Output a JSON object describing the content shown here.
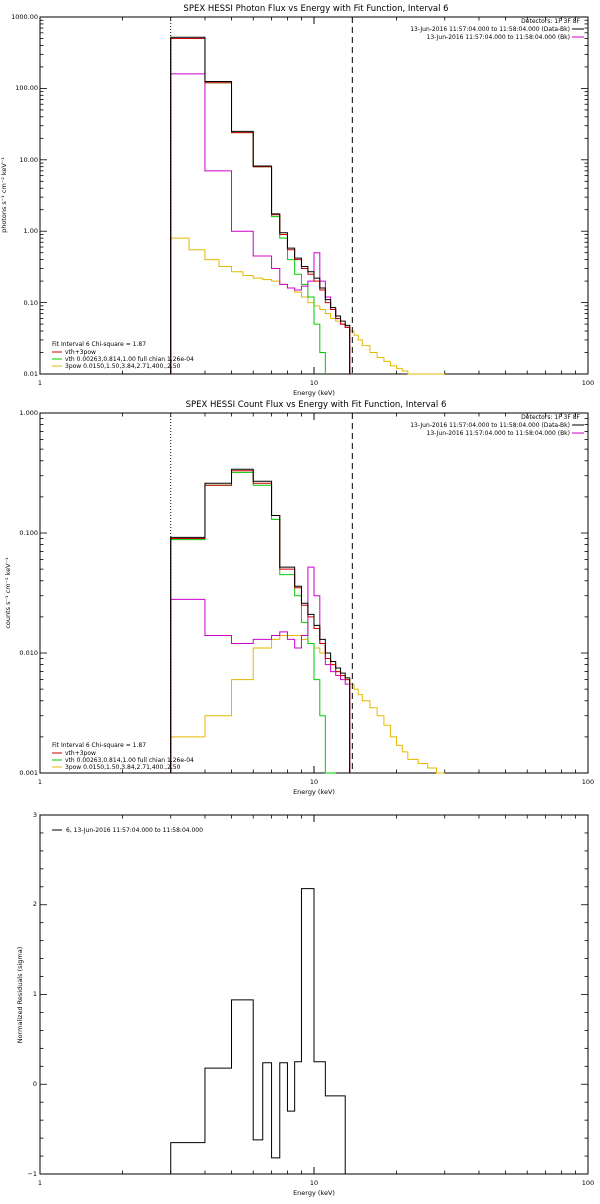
{
  "chart_data": [
    {
      "type": "line",
      "title": "SPEX HESSI Photon Flux vs Energy with Fit Function, Interval 6",
      "xlabel": "Energy (keV)",
      "ylabel": "photons s⁻¹ cm⁻² keV⁻¹",
      "xscale": "log",
      "yscale": "log",
      "xlim": [
        1,
        100
      ],
      "ylim": [
        0.01,
        1000
      ],
      "xticks": [
        "1",
        "10",
        "100"
      ],
      "yticks": [
        "0.01",
        "0.10",
        "1.00",
        "10.00",
        "100.00",
        "1000.00"
      ],
      "detectors_label": "Detectors: 1F 3F 8F",
      "top_legend": [
        {
          "text": "13-Jun-2016 11:57:04.000 to 11:58:04.000 (Data-Bk)",
          "color": "#000000"
        },
        {
          "text": "13-Jun-2016 11:57:04.000 to 11:58:04.000 (Bk)",
          "color": "#cc00cc"
        }
      ],
      "fit_legend": {
        "header": "Fit Interval 6   Chi-square = 1.87",
        "entries": [
          {
            "text": "vth+3pow",
            "color": "#cc0000"
          },
          {
            "text": "vth 0.00263,0.814,1.00  full chian 1.26e-04",
            "color": "#00cc00"
          },
          {
            "text": "3pow 0.0150,1.50,3.84,2.71,400.,2.50",
            "color": "#e6b800"
          }
        ]
      },
      "vlines": [
        {
          "x": 3.0,
          "style": "dotted",
          "color": "#000000"
        },
        {
          "x": 13.8,
          "style": "dashed",
          "color": "#000000"
        }
      ],
      "edges": [
        3.0,
        3.5,
        4.0,
        4.5,
        5.0,
        5.5,
        6.0,
        6.5,
        7.0,
        7.5,
        8.0,
        8.5,
        9.0,
        9.5,
        10.0,
        10.5,
        11.0,
        11.5,
        12.0,
        12.5,
        13.0,
        13.5
      ],
      "series": [
        {
          "key": "yellow",
          "color": "#e6b800",
          "edges": [
            3.0,
            3.5,
            4.0,
            4.5,
            5.0,
            5.5,
            6.0,
            6.5,
            7.0,
            7.5,
            8.0,
            8.5,
            9.0,
            9.5,
            10.0,
            10.5,
            11.0,
            11.5,
            12.0,
            12.5,
            13.0,
            13.5,
            14.0,
            14.5,
            15.0,
            16.0,
            17.0,
            18.0,
            19.0,
            20.0,
            21.0,
            22.0,
            24.0,
            26.0,
            28.0,
            30.0
          ],
          "values": [
            0.8,
            0.55,
            0.4,
            0.32,
            0.27,
            0.24,
            0.22,
            0.21,
            0.2,
            0.18,
            0.16,
            0.14,
            0.12,
            0.1,
            0.09,
            0.08,
            0.07,
            0.06,
            0.055,
            0.05,
            0.045,
            0.04,
            0.035,
            0.03,
            0.025,
            0.02,
            0.017,
            0.015,
            0.013,
            0.012,
            0.011,
            0.01,
            0.01,
            0.01,
            0.01
          ]
        },
        {
          "key": "green",
          "color": "#00cc00",
          "edges": [
            3.0,
            4.0,
            5.0,
            6.0,
            7.0,
            7.5,
            8.0,
            8.5,
            9.0,
            9.5,
            10.0,
            10.5,
            11.0
          ],
          "values": [
            500,
            120,
            24,
            8,
            1.6,
            0.8,
            0.4,
            0.25,
            0.18,
            0.12,
            0.05,
            0.02
          ]
        },
        {
          "key": "magenta",
          "color": "#cc00cc",
          "edges": [
            3.0,
            4.0,
            5.0,
            6.0,
            7.0,
            7.5,
            8.0,
            8.5,
            9.0,
            9.5,
            10.0,
            10.5,
            11.0,
            11.5,
            12.0,
            12.5,
            13.0,
            13.5
          ],
          "values": [
            160,
            7,
            1.0,
            0.45,
            0.3,
            0.18,
            0.16,
            0.15,
            0.17,
            0.2,
            0.5,
            0.2,
            0.12,
            0.08,
            0.06,
            0.05,
            0.045
          ]
        },
        {
          "key": "red",
          "color": "#cc0000",
          "edges": [
            3.0,
            4.0,
            5.0,
            6.0,
            7.0,
            7.5,
            8.0,
            8.5,
            9.0,
            9.5,
            10.0,
            10.5,
            11.0,
            11.5,
            12.0,
            12.5,
            13.0,
            13.5
          ],
          "values": [
            500,
            120,
            24,
            8,
            1.7,
            0.9,
            0.55,
            0.4,
            0.3,
            0.25,
            0.2,
            0.15,
            0.1,
            0.08,
            0.06,
            0.05,
            0.045
          ]
        },
        {
          "key": "black",
          "color": "#000000",
          "edges": [
            3.0,
            4.0,
            5.0,
            6.0,
            7.0,
            7.5,
            8.0,
            8.5,
            9.0,
            9.5,
            10.0,
            10.5,
            11.0,
            11.5,
            12.0,
            12.5,
            13.0,
            13.5
          ],
          "values": [
            520,
            125,
            25,
            8.2,
            1.75,
            0.95,
            0.58,
            0.42,
            0.32,
            0.27,
            0.22,
            0.16,
            0.11,
            0.085,
            0.065,
            0.055,
            0.048
          ]
        }
      ]
    },
    {
      "type": "line",
      "title": "SPEX HESSI Count Flux vs Energy with Fit Function, Interval 6",
      "xlabel": "Energy (keV)",
      "ylabel": "counts s⁻¹ cm⁻² keV⁻¹",
      "xscale": "log",
      "yscale": "log",
      "xlim": [
        1,
        100
      ],
      "ylim": [
        0.001,
        1
      ],
      "xticks": [
        "1",
        "10",
        "100"
      ],
      "yticks": [
        "0.001",
        "0.010",
        "0.100",
        "1.000"
      ],
      "detectors_label": "Detectors: 1F 3F 8F",
      "top_legend": [
        {
          "text": "13-Jun-2016 11:57:04.000 to 11:58:04.000 (Data-Bk)",
          "color": "#000000"
        },
        {
          "text": "13-Jun-2016 11:57:04.000 to 11:58:04.000 (Bk)",
          "color": "#cc00cc"
        }
      ],
      "fit_legend": {
        "header": "Fit Interval 6   Chi-square = 1.87",
        "entries": [
          {
            "text": "vth+3pow",
            "color": "#cc0000"
          },
          {
            "text": "vth 0.00263,0.814,1.00  full chian 1.26e-04",
            "color": "#00cc00"
          },
          {
            "text": "3pow 0.0150,1.50,3.84,2.71,400.,2.50",
            "color": "#e6b800"
          }
        ]
      },
      "vlines": [
        {
          "x": 3.0,
          "style": "dotted",
          "color": "#000000"
        },
        {
          "x": 13.8,
          "style": "dashed",
          "color": "#000000"
        }
      ],
      "series": [
        {
          "key": "yellow",
          "color": "#e6b800",
          "edges": [
            3.0,
            4.0,
            5.0,
            6.0,
            7.0,
            7.5,
            8.0,
            8.5,
            9.0,
            9.5,
            10.0,
            10.5,
            11.0,
            11.5,
            12.0,
            12.5,
            13.0,
            13.5,
            14.0,
            14.5,
            15.0,
            16.0,
            17.0,
            18.0,
            19.0,
            20.0,
            21.0,
            22.0,
            24.0,
            26.0,
            28.0,
            30.0
          ],
          "values": [
            0.002,
            0.003,
            0.006,
            0.011,
            0.013,
            0.014,
            0.014,
            0.014,
            0.013,
            0.012,
            0.011,
            0.01,
            0.009,
            0.008,
            0.007,
            0.0065,
            0.006,
            0.0055,
            0.005,
            0.0045,
            0.004,
            0.0035,
            0.003,
            0.0025,
            0.002,
            0.0017,
            0.0015,
            0.0013,
            0.0012,
            0.0011,
            0.001
          ]
        },
        {
          "key": "green",
          "color": "#00cc00",
          "edges": [
            3.0,
            3.5,
            4.0,
            4.5,
            5.0,
            5.5,
            6.0,
            6.5,
            7.0,
            7.5,
            8.0,
            8.5,
            9.0,
            9.5,
            10.0,
            10.5,
            11.0,
            11.5,
            12.0
          ],
          "values": [
            0.088,
            0.088,
            0.25,
            0.25,
            0.32,
            0.32,
            0.25,
            0.25,
            0.13,
            0.045,
            0.045,
            0.03,
            0.018,
            0.012,
            0.006,
            0.003,
            0.001,
            0.001
          ]
        },
        {
          "key": "magenta",
          "color": "#cc00cc",
          "edges": [
            3.0,
            4.0,
            5.0,
            6.0,
            7.0,
            7.5,
            8.0,
            8.5,
            9.0,
            9.5,
            10.0,
            10.5,
            11.0,
            11.5,
            12.0,
            12.5,
            13.0,
            13.5
          ],
          "values": [
            0.028,
            0.014,
            0.012,
            0.013,
            0.014,
            0.015,
            0.013,
            0.011,
            0.014,
            0.052,
            0.03,
            0.012,
            0.008,
            0.007,
            0.0065,
            0.006,
            0.0055
          ]
        },
        {
          "key": "red",
          "color": "#cc0000",
          "edges": [
            3.0,
            3.5,
            4.0,
            4.5,
            5.0,
            5.5,
            6.0,
            6.5,
            7.0,
            7.5,
            8.0,
            8.5,
            9.0,
            9.5,
            10.0,
            10.5,
            11.0,
            11.5,
            12.0,
            12.5,
            13.0,
            13.5
          ],
          "values": [
            0.09,
            0.09,
            0.25,
            0.25,
            0.33,
            0.33,
            0.26,
            0.26,
            0.14,
            0.05,
            0.05,
            0.035,
            0.025,
            0.02,
            0.016,
            0.012,
            0.009,
            0.008,
            0.007,
            0.0065,
            0.006
          ]
        },
        {
          "key": "black",
          "color": "#000000",
          "edges": [
            3.0,
            3.5,
            4.0,
            4.5,
            5.0,
            5.5,
            6.0,
            6.5,
            7.0,
            7.5,
            8.0,
            8.5,
            9.0,
            9.5,
            10.0,
            10.5,
            11.0,
            11.5,
            12.0,
            12.5,
            13.0,
            13.5
          ],
          "values": [
            0.092,
            0.092,
            0.26,
            0.26,
            0.34,
            0.34,
            0.27,
            0.27,
            0.14,
            0.052,
            0.052,
            0.036,
            0.026,
            0.021,
            0.017,
            0.013,
            0.01,
            0.0085,
            0.0075,
            0.0068,
            0.0062
          ]
        }
      ]
    },
    {
      "type": "line",
      "title": "",
      "xlabel": "Energy (keV)",
      "ylabel": "Normalized Residuals (sigma)",
      "xscale": "log",
      "yscale": "linear",
      "xlim": [
        1,
        100
      ],
      "ylim": [
        -1,
        3
      ],
      "xticks": [
        "1",
        "10",
        "100"
      ],
      "yticks": [
        "−1",
        "0",
        "1",
        "2",
        "3"
      ],
      "legend": [
        {
          "text": "6, 13-Jun-2016 11:57:04.000 to 11:58:04.000",
          "color": "#000000"
        }
      ],
      "series": [
        {
          "key": "residuals",
          "color": "#000000",
          "edges": [
            3.0,
            4.0,
            5.0,
            6.0,
            6.5,
            7.0,
            7.5,
            8.0,
            8.5,
            9.0,
            10.0,
            11.0,
            12.0,
            13.0
          ],
          "values": [
            -0.65,
            0.18,
            0.94,
            -0.62,
            0.24,
            -0.82,
            0.24,
            -0.3,
            0.25,
            2.18,
            0.25,
            -0.13,
            -0.13
          ]
        }
      ]
    }
  ]
}
